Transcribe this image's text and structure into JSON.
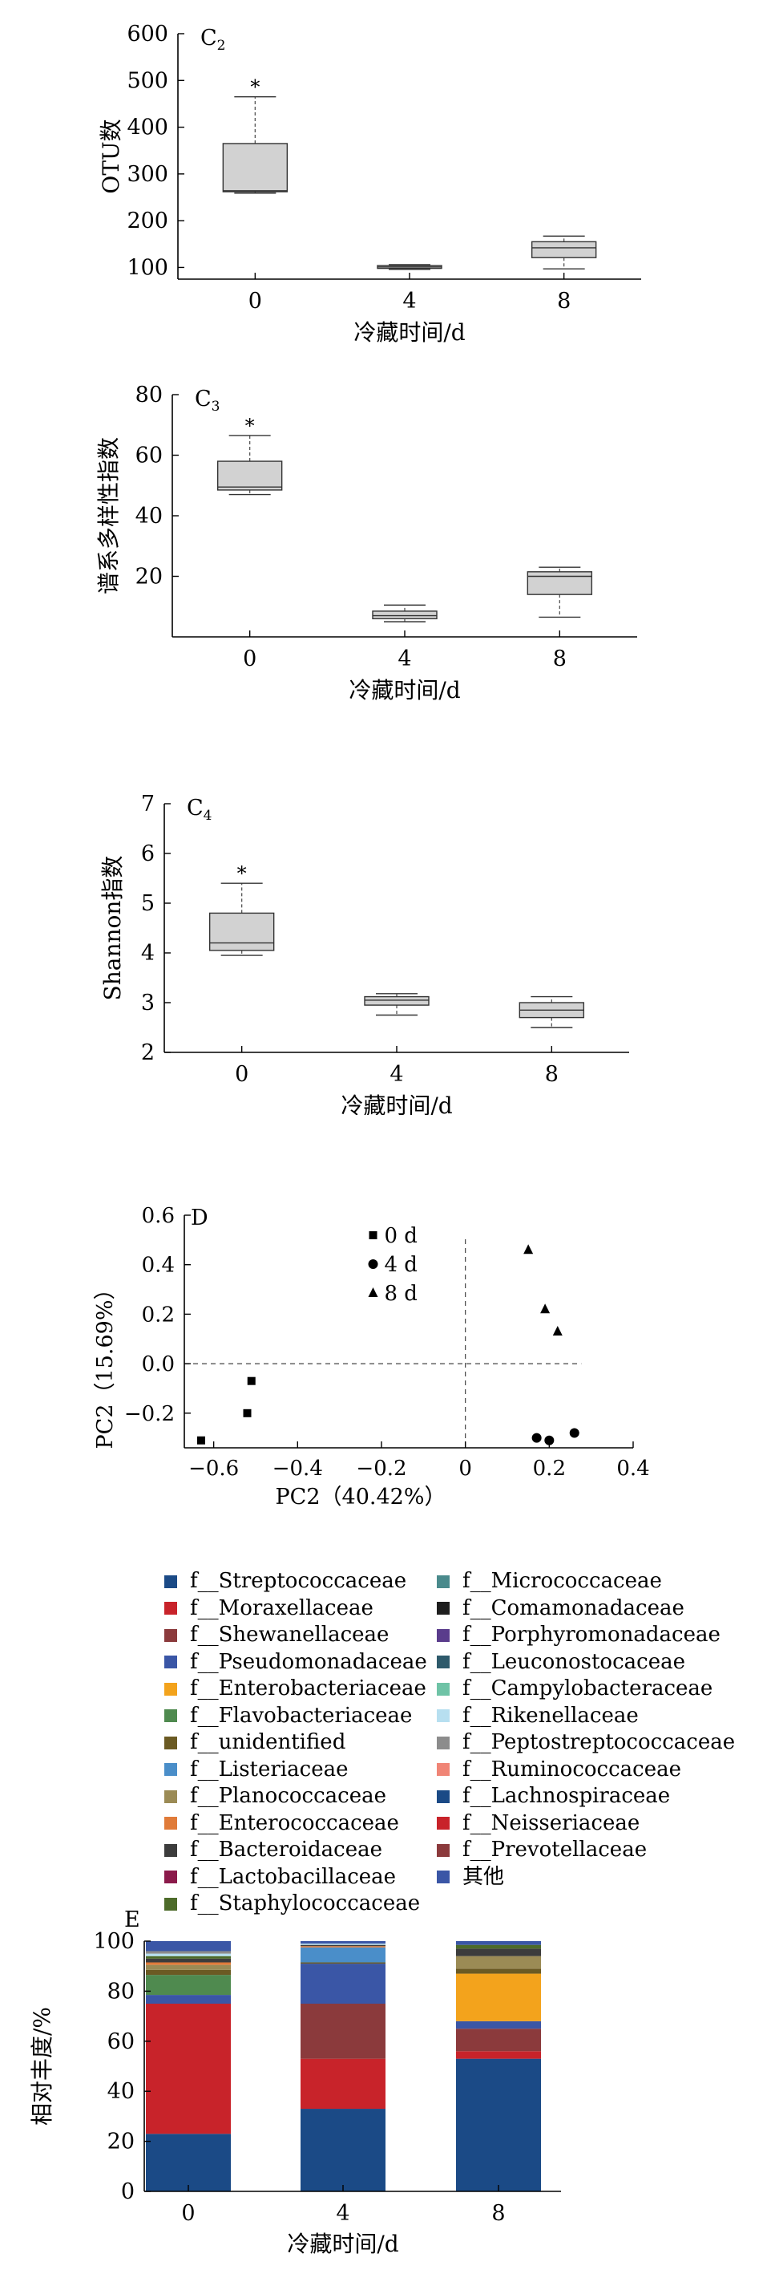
{
  "chart_data": [
    {
      "id": "C2",
      "type": "box",
      "panel_label": "C",
      "panel_sub": "2",
      "xlabel": "冷藏时间/d",
      "ylabel": "OTU数",
      "ylim": [
        75,
        600
      ],
      "yticks": [
        100,
        200,
        300,
        400,
        500,
        600
      ],
      "categories": [
        "0",
        "4",
        "8"
      ],
      "boxes": [
        {
          "x": "0",
          "whisker_low": 259,
          "q1": 262,
          "median": 264,
          "q3": 365,
          "whisker_high": 465,
          "outlier": 465,
          "outlier_label": "*"
        },
        {
          "x": "4",
          "whisker_low": 96,
          "q1": 98,
          "median": 101,
          "q3": 104,
          "whisker_high": 106
        },
        {
          "x": "8",
          "whisker_low": 97,
          "q1": 121,
          "median": 142,
          "q3": 155,
          "whisker_high": 167
        }
      ]
    },
    {
      "id": "C3",
      "type": "box",
      "panel_label": "C",
      "panel_sub": "3",
      "xlabel": "冷藏时间/d",
      "ylabel": "谱系多样性指数",
      "ylim": [
        0,
        80
      ],
      "yticks": [
        20,
        40,
        60,
        80
      ],
      "categories": [
        "0",
        "4",
        "8"
      ],
      "boxes": [
        {
          "x": "0",
          "whisker_low": 47,
          "q1": 48.5,
          "median": 49.5,
          "q3": 58,
          "whisker_high": 66.5,
          "outlier": 66.5,
          "outlier_label": "*"
        },
        {
          "x": "4",
          "whisker_low": 5,
          "q1": 6,
          "median": 7,
          "q3": 8.5,
          "whisker_high": 10.5
        },
        {
          "x": "8",
          "whisker_low": 6.5,
          "q1": 14,
          "median": 20,
          "q3": 21.5,
          "whisker_high": 23
        }
      ]
    },
    {
      "id": "C4",
      "type": "box",
      "panel_label": "C",
      "panel_sub": "4",
      "xlabel": "冷藏时间/d",
      "ylabel": "Shannon指数",
      "ylim": [
        2,
        7
      ],
      "yticks": [
        2,
        3,
        4,
        5,
        6,
        7
      ],
      "categories": [
        "0",
        "4",
        "8"
      ],
      "boxes": [
        {
          "x": "0",
          "whisker_low": 3.95,
          "q1": 4.05,
          "median": 4.2,
          "q3": 4.8,
          "whisker_high": 5.4,
          "outlier": 5.4,
          "outlier_label": "*"
        },
        {
          "x": "4",
          "whisker_low": 2.75,
          "q1": 2.95,
          "median": 3.05,
          "q3": 3.12,
          "whisker_high": 3.18
        },
        {
          "x": "8",
          "whisker_low": 2.5,
          "q1": 2.7,
          "median": 2.85,
          "q3": 3.0,
          "whisker_high": 3.12
        }
      ]
    },
    {
      "id": "D",
      "type": "scatter",
      "panel_label": "D",
      "xlabel": "PC2（40.42%）",
      "ylabel": "PC2（15.69%）",
      "xlim": [
        -0.67,
        0.4
      ],
      "ylim": [
        -0.34,
        0.6
      ],
      "xticks": [
        -0.6,
        -0.4,
        -0.2,
        0.0,
        0.2,
        0.4
      ],
      "yticks": [
        -0.2,
        0.0,
        0.2,
        0.4,
        0.6
      ],
      "xtick_labels": [
        "−0.6",
        "−0.4",
        "−0.2",
        "0",
        "0.2",
        "0.4"
      ],
      "ytick_labels": [
        "−0.2",
        "0.0",
        "0.2",
        "0.4",
        "0.6"
      ],
      "series": [
        {
          "name": "0 d",
          "marker": "square",
          "points": [
            [
              -0.63,
              -0.31
            ],
            [
              -0.52,
              -0.2
            ],
            [
              -0.51,
              -0.07
            ]
          ]
        },
        {
          "name": "4 d",
          "marker": "circle",
          "points": [
            [
              0.17,
              -0.3
            ],
            [
              0.2,
              -0.31
            ],
            [
              0.26,
              -0.28
            ]
          ]
        },
        {
          "name": "8 d",
          "marker": "triangle",
          "points": [
            [
              0.15,
              0.46
            ],
            [
              0.19,
              0.22
            ],
            [
              0.22,
              0.13
            ]
          ]
        }
      ]
    },
    {
      "id": "E",
      "type": "bar",
      "stacked": true,
      "panel_label": "E",
      "xlabel": "冷藏时间/d",
      "ylabel": "相对丰度/%",
      "ylim": [
        0,
        100
      ],
      "yticks": [
        0,
        20,
        40,
        60,
        80,
        100
      ],
      "categories": [
        "0",
        "4",
        "8"
      ],
      "series": [
        {
          "name": "f__Streptococcaceae",
          "color": "#1b4a86",
          "values": [
            23,
            33,
            53
          ]
        },
        {
          "name": "f__Moraxellaceae",
          "color": "#c8232a",
          "values": [
            52,
            20,
            3
          ]
        },
        {
          "name": "f__Shewanellaceae",
          "color": "#8b3a3c",
          "values": [
            0,
            22,
            9
          ]
        },
        {
          "name": "f__Pseudomonadaceae",
          "color": "#3a56a6",
          "values": [
            3.5,
            16,
            3
          ]
        },
        {
          "name": "f__Enterobacteriaceae",
          "color": "#f3a31c",
          "values": [
            0,
            0,
            19
          ]
        },
        {
          "name": "f__Flavobacteriaceae",
          "color": "#4f8a4f",
          "values": [
            8,
            0,
            0
          ]
        },
        {
          "name": "f__unidentified",
          "color": "#6b5a23",
          "values": [
            2,
            0.5,
            2
          ]
        },
        {
          "name": "f__Listeriaceae",
          "color": "#4a8ec9",
          "values": [
            0,
            6,
            0
          ]
        },
        {
          "name": "f__Planococcaceae",
          "color": "#9b8b55",
          "values": [
            2,
            0,
            5
          ]
        },
        {
          "name": "f__Enterococcaceae",
          "color": "#e07b39",
          "values": [
            1,
            0.5,
            0
          ]
        },
        {
          "name": "f__Bacteroidaceae",
          "color": "#3c3c3c",
          "values": [
            1.5,
            0.5,
            3
          ]
        },
        {
          "name": "f__Lactobacillaceae",
          "color": "#8b1a4a",
          "values": [
            0,
            0,
            0
          ]
        },
        {
          "name": "f__Staphylococcaceae",
          "color": "#4d6b2a",
          "values": [
            1,
            0,
            1.5
          ]
        },
        {
          "name": "f__Micrococcaceae",
          "color": "#4a8a8c",
          "values": [
            0,
            0,
            0
          ]
        },
        {
          "name": "f__Comamonadaceae",
          "color": "#1e1e1e",
          "values": [
            0,
            0,
            0
          ]
        },
        {
          "name": "f__Porphyromonadaceae",
          "color": "#5a3c8c",
          "values": [
            0,
            0,
            0
          ]
        },
        {
          "name": "f__Leuconostocaceae",
          "color": "#2e5a6b",
          "values": [
            0,
            0,
            0
          ]
        },
        {
          "name": "f__Campylobacteraceae",
          "color": "#6fc3a6",
          "values": [
            0,
            0,
            0
          ]
        },
        {
          "name": "f__Rikenellaceae",
          "color": "#b7dff0",
          "values": [
            1,
            0.5,
            0
          ]
        },
        {
          "name": "f__Peptostreptococcaceae",
          "color": "#8c8c8c",
          "values": [
            1,
            0,
            0
          ]
        },
        {
          "name": "f__Ruminococcaceae",
          "color": "#f08576",
          "values": [
            0,
            0,
            0
          ]
        },
        {
          "name": "f__Lachnospiraceae",
          "color": "#1b4a86",
          "values": [
            0,
            0,
            0
          ]
        },
        {
          "name": "f__Neisseriaceae",
          "color": "#c8232a",
          "values": [
            0,
            0,
            0
          ]
        },
        {
          "name": "f__Prevotellaceae",
          "color": "#8b3a3c",
          "values": [
            0,
            0,
            0
          ]
        },
        {
          "name": "其他",
          "color": "#3a56a6",
          "values": [
            4,
            1,
            1.5
          ]
        }
      ]
    }
  ]
}
